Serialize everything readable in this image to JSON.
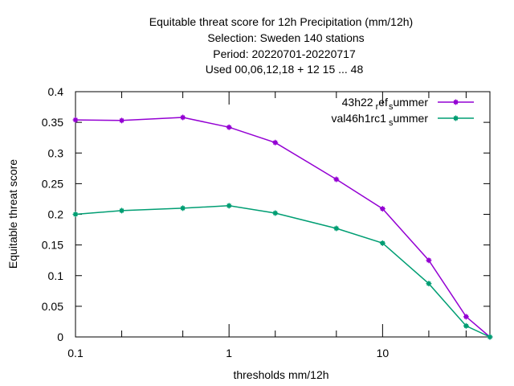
{
  "chart_data": {
    "type": "line",
    "title_lines": [
      "Equitable threat score  for 12h Precipitation (mm/12h)",
      "Selection: Sweden    140 stations",
      "Period: 20220701-20220717",
      "Used  00,06,12,18  + 12 15 ... 48"
    ],
    "xlabel": "thresholds mm/12h",
    "ylabel": "Equitable threat score",
    "xscale": "log",
    "xlim": [
      0.1,
      50
    ],
    "ylim": [
      0,
      0.4
    ],
    "x_ticks": [
      {
        "value": 0.1,
        "label": "0.1"
      },
      {
        "value": 1,
        "label": "1"
      },
      {
        "value": 10,
        "label": "10"
      }
    ],
    "x_minor_ticks": [
      0.2,
      0.5,
      2,
      5,
      20,
      35,
      50
    ],
    "y_ticks": [
      {
        "value": 0,
        "label": "0"
      },
      {
        "value": 0.05,
        "label": "0.05"
      },
      {
        "value": 0.1,
        "label": "0.1"
      },
      {
        "value": 0.15,
        "label": "0.15"
      },
      {
        "value": 0.2,
        "label": "0.2"
      },
      {
        "value": 0.25,
        "label": "0.25"
      },
      {
        "value": 0.3,
        "label": "0.3"
      },
      {
        "value": 0.35,
        "label": "0.35"
      },
      {
        "value": 0.4,
        "label": "0.4"
      }
    ],
    "grid": false,
    "legend_position": "top-right",
    "x": [
      0.1,
      0.2,
      0.5,
      1,
      2,
      5,
      10,
      20,
      35,
      50
    ],
    "series": [
      {
        "name": "43h22",
        "name_sub": "r",
        "name_mid": "ef",
        "name_sub2": "s",
        "name_end": "ummer",
        "color": "#9400d3",
        "values": [
          0.354,
          0.353,
          0.358,
          0.342,
          0.317,
          0.257,
          0.209,
          0.125,
          0.033,
          0.0
        ]
      },
      {
        "name": "val46h1rc1",
        "name_sub": "s",
        "name_end": "ummer",
        "color": "#009e73",
        "values": [
          0.2,
          0.206,
          0.21,
          0.214,
          0.202,
          0.177,
          0.153,
          0.087,
          0.018,
          0.0
        ]
      }
    ]
  }
}
